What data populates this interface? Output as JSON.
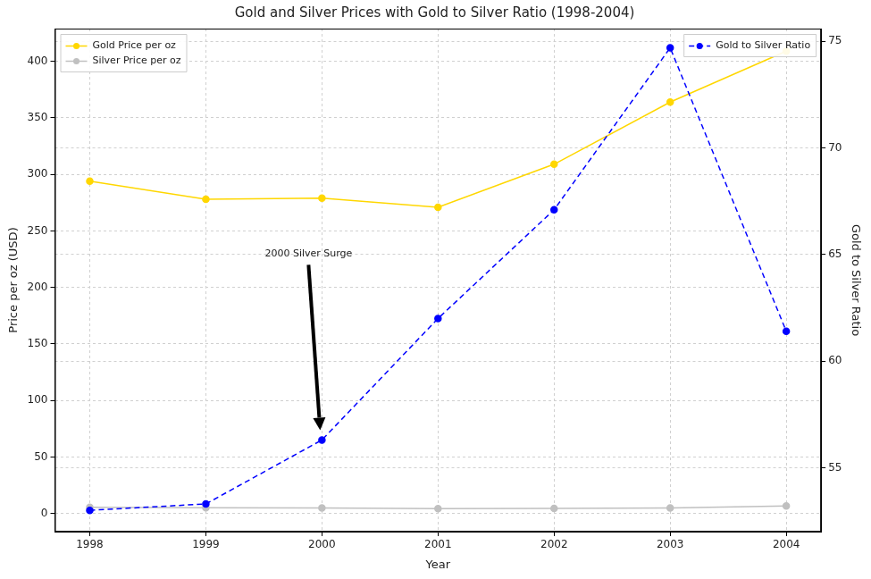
{
  "chart_data": {
    "type": "line",
    "title": "Gold and Silver Prices with Gold to Silver Ratio (1998-2004)",
    "x_label": "Year",
    "y_label": "Price per oz (USD)",
    "y2_label": "Gold to Silver Ratio",
    "x": [
      1998,
      1999,
      2000,
      2001,
      2002,
      2003,
      2004
    ],
    "series": [
      {
        "name": "Gold Price per oz",
        "color": "#FFD700",
        "marker": "circle",
        "line_style": "solid",
        "values": [
          294,
          278,
          279,
          271,
          309,
          364,
          409
        ]
      },
      {
        "name": "Silver Price per oz",
        "color": "#C0C0C0",
        "marker": "circle",
        "line_style": "solid",
        "values": [
          5.5,
          5.2,
          5.0,
          4.4,
          4.6,
          4.9,
          6.7
        ]
      },
      {
        "name": "Gold to Silver Ratio",
        "color": "#0000FF",
        "marker": "circle",
        "line_style": "dashed",
        "axis": "y2",
        "values": [
          53.0,
          53.3,
          56.3,
          62.0,
          67.1,
          74.7,
          61.4
        ]
      }
    ],
    "xlim": [
      1997.7,
      2004.3
    ],
    "xticks": [
      1998,
      1999,
      2000,
      2001,
      2002,
      2003,
      2004
    ],
    "ylim": [
      -16,
      429
    ],
    "yticks": [
      0,
      50,
      100,
      150,
      200,
      250,
      300,
      350,
      400
    ],
    "y2lim": [
      52,
      75.6
    ],
    "y2ticks": [
      55,
      60,
      65,
      70,
      75
    ],
    "annotations": [
      {
        "text": "2000 Silver Surge",
        "x": 2000
      }
    ],
    "legend": "upper left",
    "grid": true
  }
}
